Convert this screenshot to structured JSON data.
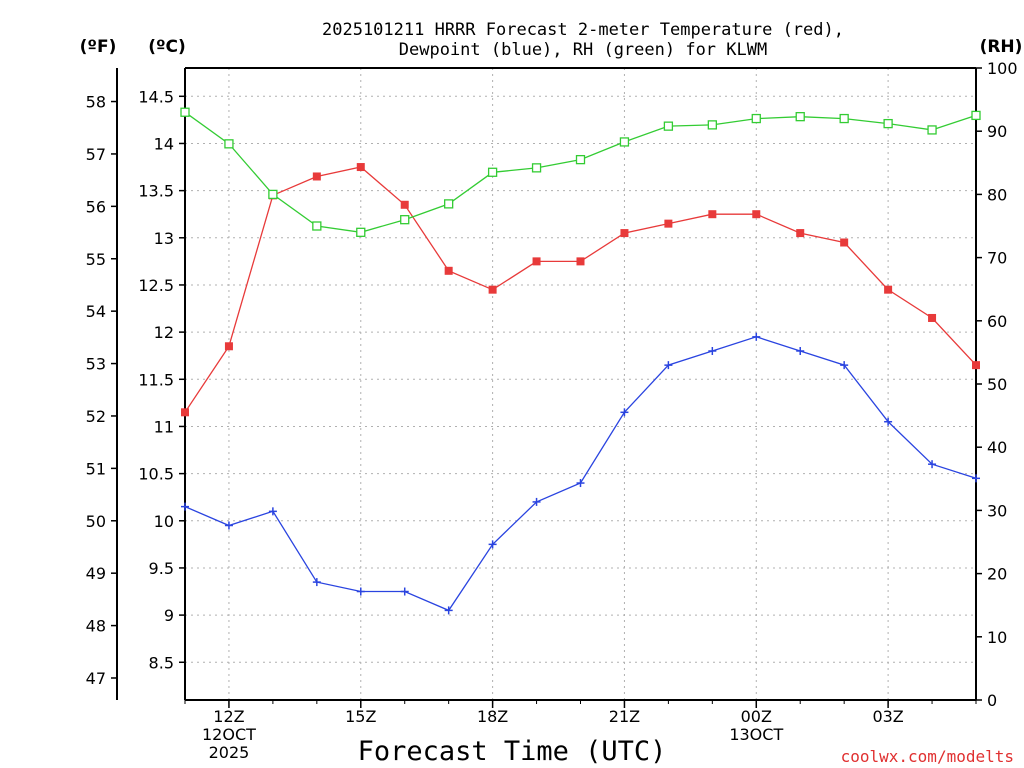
{
  "chart_data": {
    "type": "line",
    "title_lines": [
      "2025101211 HRRR Forecast 2-meter Temperature (red),",
      "Dewpoint (blue), RH (green) for KLWM"
    ],
    "xlabel": "Forecast Time (UTC)",
    "credit": "coolwx.com/modelts",
    "left_unit_f": "(ºF)",
    "left_unit_c": "(ºC)",
    "right_unit": "(RH)",
    "x_hours": [
      11,
      12,
      13,
      14,
      15,
      16,
      17,
      18,
      19,
      20,
      21,
      22,
      23,
      24,
      25,
      26,
      27,
      28,
      29
    ],
    "x_ticks": [
      {
        "hour": 12,
        "lines": [
          "12Z",
          "12OCT",
          "2025"
        ]
      },
      {
        "hour": 15,
        "lines": [
          "15Z"
        ]
      },
      {
        "hour": 18,
        "lines": [
          "18Z"
        ]
      },
      {
        "hour": 21,
        "lines": [
          "21Z"
        ]
      },
      {
        "hour": 24,
        "lines": [
          "00Z",
          "13OCT"
        ]
      },
      {
        "hour": 27,
        "lines": [
          "03Z"
        ]
      }
    ],
    "xlim": [
      11,
      29
    ],
    "ylim_c": [
      8.1,
      14.8
    ],
    "ylim_rh": [
      0,
      100
    ],
    "celsius_ticks": [
      8.5,
      9,
      9.5,
      10,
      10.5,
      11,
      11.5,
      12,
      12.5,
      13,
      13.5,
      14,
      14.5
    ],
    "celsius_tick_labels": [
      "8.5",
      "9",
      "9.5",
      "10",
      "10.5",
      "11",
      "11.5",
      "12",
      "12.5",
      "13",
      "13.5",
      "14",
      "14.5"
    ],
    "fahrenheit_ticks": [
      47,
      48,
      49,
      50,
      51,
      52,
      53,
      54,
      55,
      56,
      57,
      58
    ],
    "fahrenheit_tick_labels": [
      "47",
      "48",
      "49",
      "50",
      "51",
      "52",
      "53",
      "54",
      "55",
      "56",
      "57",
      "58"
    ],
    "rh_ticks": [
      0,
      10,
      20,
      30,
      40,
      50,
      60,
      70,
      80,
      90,
      100
    ],
    "rh_tick_labels": [
      "0",
      "10",
      "20",
      "30",
      "40",
      "50",
      "60",
      "70",
      "80",
      "90",
      "100"
    ],
    "series": [
      {
        "name": "Temperature",
        "axis": "celsius",
        "color": "#e83a3a",
        "marker": "filled-square",
        "values": [
          11.15,
          11.85,
          13.45,
          13.65,
          13.75,
          13.35,
          12.65,
          12.45,
          12.75,
          12.75,
          13.05,
          13.15,
          13.25,
          13.25,
          13.05,
          12.95,
          12.45,
          12.15,
          11.65
        ]
      },
      {
        "name": "Dewpoint",
        "axis": "celsius",
        "color": "#2a44e0",
        "marker": "plus",
        "values": [
          10.15,
          9.95,
          10.1,
          9.35,
          9.25,
          9.25,
          9.05,
          9.75,
          10.2,
          10.4,
          11.15,
          11.65,
          11.8,
          11.95,
          11.8,
          11.65,
          11.05,
          10.6,
          10.45
        ]
      },
      {
        "name": "RH",
        "axis": "rh",
        "color": "#33cc33",
        "marker": "open-square",
        "values": [
          93,
          88,
          80,
          75,
          74,
          76,
          78.5,
          83.5,
          84.2,
          85.5,
          88.3,
          90.8,
          91,
          92,
          92.3,
          92,
          91.2,
          90.2,
          92.5
        ]
      }
    ]
  }
}
